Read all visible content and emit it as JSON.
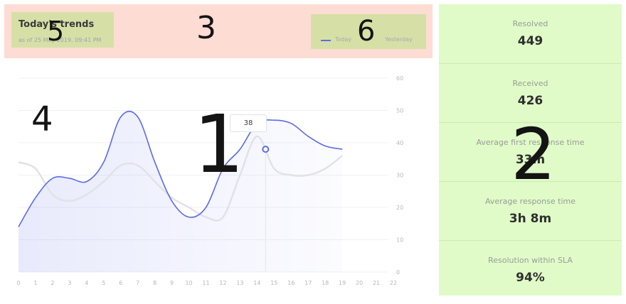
{
  "header": {
    "title": "Today's trends",
    "subtitle": "as of 25 May 2019, 09:41 PM"
  },
  "legend": {
    "today": "Today",
    "yesterday": "Yesterday"
  },
  "markers": {
    "chart": "1",
    "stats": "2",
    "header": "3",
    "chart_area": "4",
    "title": "5",
    "legend": "6"
  },
  "tooltip": {
    "value": "38"
  },
  "stats": [
    {
      "label": "Resolved",
      "value": "449"
    },
    {
      "label": "Received",
      "value": "426"
    },
    {
      "label": "Average first response time",
      "value": "33m"
    },
    {
      "label": "Average response time",
      "value": "3h 8m"
    },
    {
      "label": "Resolution within SLA",
      "value": "94%"
    }
  ],
  "colors": {
    "today": "#5b6be8",
    "yesterday": "#e2e2e6",
    "header_band": "#fddcd4",
    "highlight_box": "#d6e0a6",
    "stats_panel": "#e0fbc7"
  },
  "chart_data": {
    "type": "line",
    "x": [
      0,
      1,
      2,
      3,
      4,
      5,
      6,
      7,
      8,
      9,
      10,
      11,
      12,
      13,
      14,
      15,
      16,
      17,
      18,
      19
    ],
    "x_ticks": [
      "0",
      "1",
      "2",
      "3",
      "4",
      "5",
      "6",
      "7",
      "8",
      "9",
      "10",
      "11",
      "12",
      "13",
      "14",
      "15",
      "16",
      "17",
      "18",
      "19",
      "20",
      "21",
      "22"
    ],
    "y_ticks": [
      "0",
      "10",
      "20",
      "30",
      "40",
      "50",
      "60"
    ],
    "series": [
      {
        "name": "Today",
        "values": [
          14,
          23,
          29,
          29,
          28,
          34,
          48,
          48,
          34,
          22,
          17,
          20,
          32,
          38,
          46,
          47,
          46,
          42,
          39,
          38
        ]
      },
      {
        "name": "Yesterday",
        "values": [
          34,
          32,
          24,
          22,
          24,
          28,
          33,
          33,
          28,
          23,
          20,
          17,
          17,
          30,
          42,
          32,
          30,
          30,
          32,
          36
        ]
      }
    ],
    "highlight": {
      "x": 14.5,
      "value": 38
    },
    "xlim": [
      0,
      22
    ],
    "ylim": [
      0,
      60
    ],
    "grid": true,
    "legend": "top-right"
  }
}
